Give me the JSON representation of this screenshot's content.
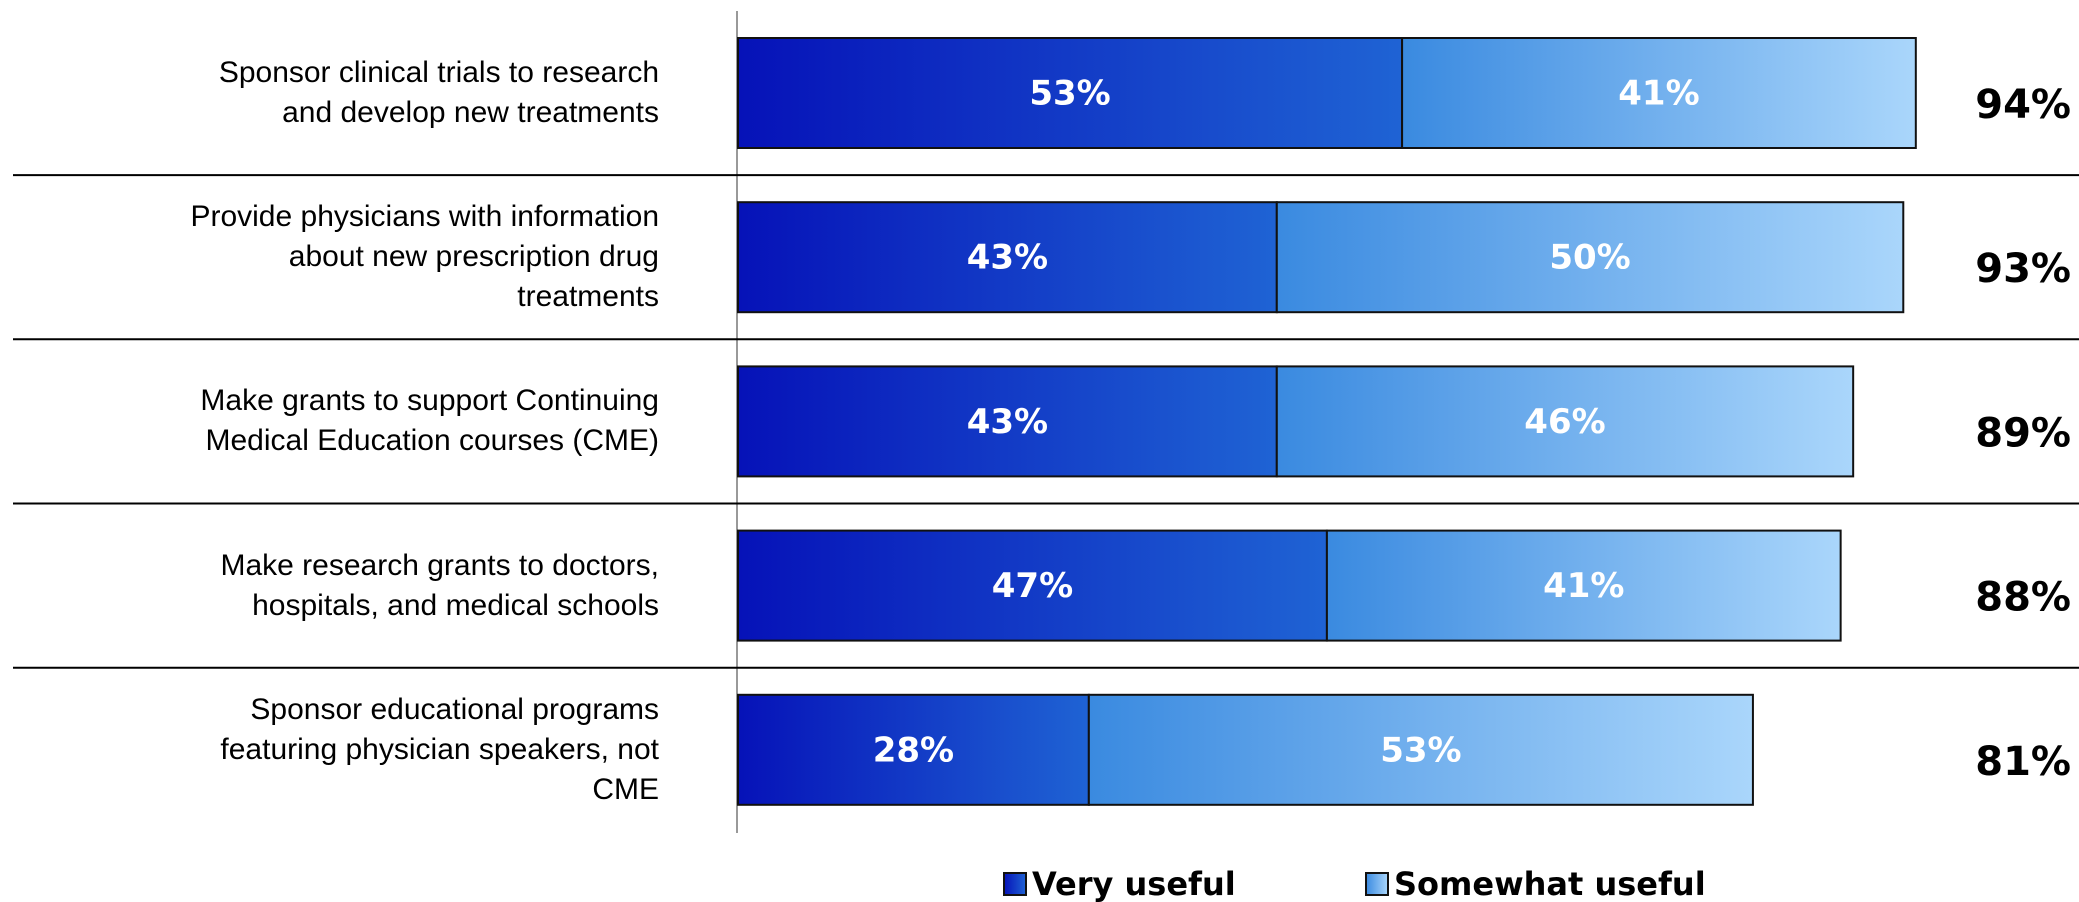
{
  "chart_data": {
    "type": "stacked-bar-horizontal",
    "categories": [
      "Sponsor clinical trials to research\nand develop new treatments",
      "Provide physicians with information\nabout new prescription drug\ntreatments",
      "Make grants to support Continuing\nMedical Education courses (CME)",
      "Make research grants to doctors,\nhospitals, and medical schools",
      "Sponsor educational programs\nfeaturing physician speakers, not\nCME"
    ],
    "series": [
      {
        "name": "Very useful",
        "color": "#0a2bd0",
        "values": [
          53,
          43,
          43,
          47,
          28
        ],
        "value_labels": [
          "53%",
          "43%",
          "43%",
          "47%",
          "28%"
        ]
      },
      {
        "name": "Somewhat useful",
        "color": "#5aa6ec",
        "values": [
          41,
          50,
          46,
          41,
          53
        ],
        "value_labels": [
          "41%",
          "50%",
          "46%",
          "41%",
          "53%"
        ]
      }
    ],
    "totals": [
      94,
      93,
      89,
      88,
      81
    ],
    "total_labels": [
      "94%",
      "93%",
      "89%",
      "88%",
      "81%"
    ]
  }
}
